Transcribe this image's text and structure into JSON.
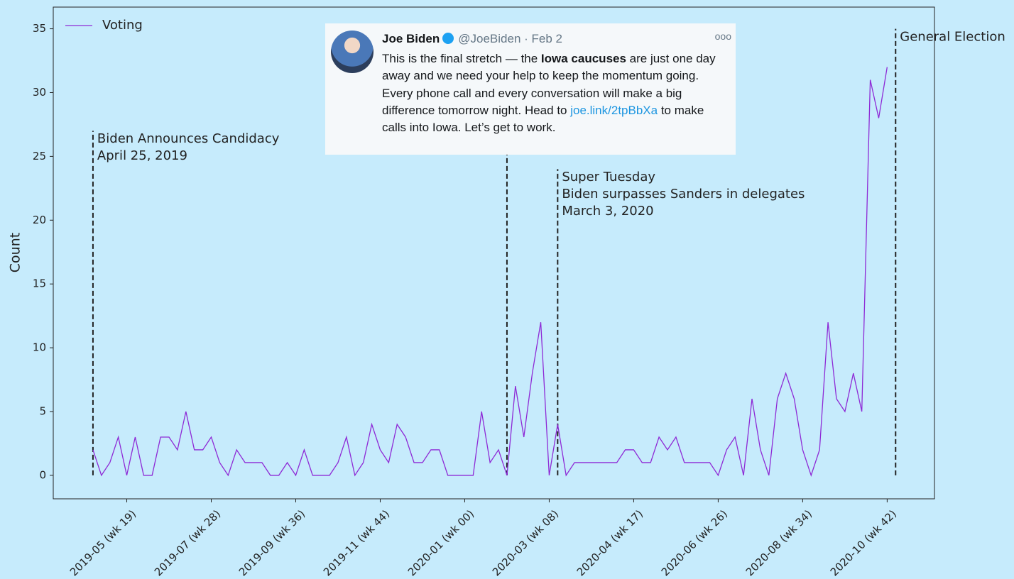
{
  "chart_data": {
    "type": "line",
    "ylabel": "Count",
    "categories": [
      null,
      null,
      null,
      null,
      "2019-05 (wk 19)",
      null,
      null,
      null,
      null,
      null,
      null,
      null,
      null,
      null,
      "2019-07 (wk 28)",
      null,
      null,
      null,
      null,
      null,
      null,
      null,
      null,
      null,
      "2019-09 (wk 36)",
      null,
      null,
      null,
      null,
      null,
      null,
      null,
      null,
      null,
      "2019-11 (wk 44)",
      null,
      null,
      null,
      null,
      null,
      null,
      null,
      null,
      null,
      "2020-01 (wk 00)",
      null,
      null,
      null,
      null,
      null,
      null,
      null,
      null,
      null,
      "2020-03 (wk 08)",
      null,
      null,
      null,
      null,
      null,
      null,
      null,
      null,
      null,
      "2020-04 (wk 17)",
      null,
      null,
      null,
      null,
      null,
      null,
      null,
      null,
      null,
      "2020-06 (wk 26)",
      null,
      null,
      null,
      null,
      null,
      null,
      null,
      null,
      null,
      "2020-08 (wk 34)",
      null,
      null,
      null,
      null,
      null,
      null,
      null,
      null,
      null,
      "2020-10 (wk 42)"
    ],
    "series": [
      {
        "name": "Voting",
        "color": "#8e2ad6",
        "values": [
          2,
          0,
          1,
          3,
          0,
          3,
          0,
          0,
          3,
          3,
          2,
          5,
          2,
          2,
          3,
          1,
          0,
          2,
          1,
          1,
          1,
          0,
          0,
          1,
          0,
          2,
          0,
          0,
          0,
          1,
          3,
          0,
          1,
          4,
          2,
          1,
          4,
          3,
          1,
          1,
          2,
          2,
          0,
          0,
          0,
          0,
          5,
          1,
          2,
          0,
          7,
          3,
          8,
          12,
          0,
          4,
          0,
          1,
          1,
          1,
          1,
          1,
          1,
          2,
          2,
          1,
          1,
          3,
          2,
          3,
          1,
          1,
          1,
          1,
          0,
          2,
          3,
          0,
          6,
          2,
          0,
          6,
          8,
          6,
          2,
          0,
          2,
          12,
          6,
          5,
          8,
          5,
          31,
          28,
          32
        ]
      }
    ],
    "ylim": [
      -1.84,
      36.7
    ],
    "yticks": [
      0,
      5,
      10,
      15,
      20,
      25,
      30,
      35
    ],
    "xlim": [
      -4.7,
      99.6
    ],
    "legend": "upper left",
    "annotations": [
      {
        "x": 0,
        "top": 27,
        "lines": [
          "Biden Announces Candidacy",
          "April 25, 2019"
        ]
      },
      {
        "x": 49,
        "top": 35,
        "lines": []
      },
      {
        "x": 55,
        "top": 24,
        "lines": [
          "Super Tuesday",
          "Biden surpasses Sanders in delegates",
          "March 3, 2020"
        ]
      },
      {
        "x": 95,
        "top": 35,
        "lines": [
          "General Election"
        ]
      }
    ]
  },
  "tweet": {
    "name": "Joe Biden",
    "handle": "@JoeBiden",
    "date": "· Feb 2",
    "text": [
      "This is the final stretch — the ",
      "Iowa caucuses",
      " are just one day away and we need your help to keep the momentum going. Every phone call and every conversation will make a big difference tomorrow night. Head to ",
      "joe.link/2tpBbXa",
      " to make calls into Iowa. Let’s get to work."
    ]
  }
}
